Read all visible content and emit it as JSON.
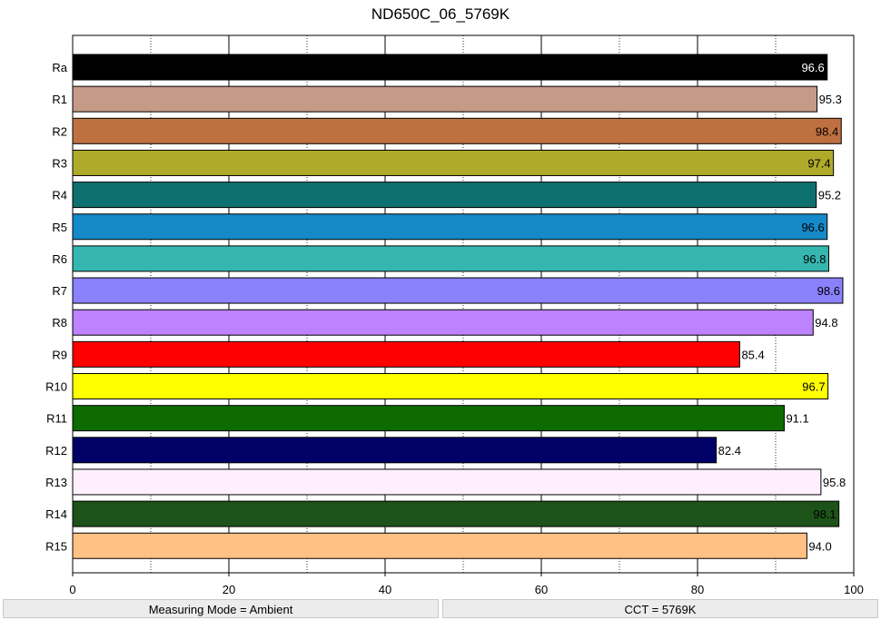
{
  "chart_data": {
    "type": "bar",
    "orientation": "horizontal",
    "title": "ND650C_06_5769K",
    "xlabel": "",
    "ylabel": "",
    "xlim": [
      0,
      100
    ],
    "x_ticks": [
      "0",
      "20",
      "40",
      "60",
      "80",
      "100"
    ],
    "grid": "vertical dotted every 10",
    "categories": [
      "Ra",
      "R1",
      "R2",
      "R3",
      "R4",
      "R5",
      "R6",
      "R7",
      "R8",
      "R9",
      "R10",
      "R11",
      "R12",
      "R13",
      "R14",
      "R15"
    ],
    "values": [
      96.6,
      95.3,
      98.4,
      97.4,
      95.2,
      96.6,
      96.8,
      98.6,
      94.8,
      85.4,
      96.7,
      91.1,
      82.4,
      95.8,
      98.1,
      94.0
    ],
    "value_labels": [
      "96.6",
      "95.3",
      "98.4",
      "97.4",
      "95.2",
      "96.6",
      "96.8",
      "98.6",
      "94.8",
      "85.4",
      "96.7",
      "91.1",
      "82.4",
      "95.8",
      "98.1",
      "94.0"
    ],
    "colors": [
      "#000000",
      "#c59a87",
      "#bf7040",
      "#b0aa2b",
      "#0f716f",
      "#1689c8",
      "#35b7b0",
      "#8a81fd",
      "#bd82fe",
      "#ff0000",
      "#ffff00",
      "#0d6b00",
      "#000066",
      "#ffeffe",
      "#1d5218",
      "#ffc184"
    ],
    "label_colors": [
      "#ffffff",
      "#000000",
      "#000000",
      "#000000",
      "#000000",
      "#000000",
      "#000000",
      "#000000",
      "#000000",
      "#000000",
      "#000000",
      "#000000",
      "#000000",
      "#000000",
      "#000000",
      "#000000"
    ]
  },
  "status": {
    "left": "Measuring Mode = Ambient",
    "right": "CCT = 5769K"
  }
}
